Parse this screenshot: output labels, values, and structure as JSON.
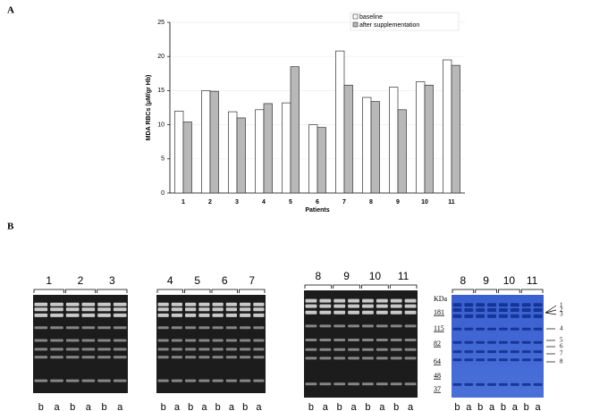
{
  "panel_a": "A",
  "panel_b": "B",
  "chart_data": {
    "type": "bar",
    "y_label": "MDA RBCs (μM/gr Hb)",
    "x_label": "Patients",
    "categories": [
      "1",
      "2",
      "3",
      "4",
      "5",
      "6",
      "7",
      "8",
      "9",
      "10",
      "11"
    ],
    "series": [
      {
        "name": "baseline",
        "color": "#ffffff",
        "values": [
          12,
          15,
          11.9,
          12.2,
          13.2,
          10,
          20.8,
          14,
          15.5,
          16.3,
          19.5
        ]
      },
      {
        "name": "after supplementation",
        "color": "#b8b8b8",
        "values": [
          10.4,
          14.9,
          11,
          13.1,
          18.5,
          9.6,
          15.8,
          13.4,
          12.2,
          15.8,
          18.7
        ]
      }
    ],
    "ylim": [
      0,
      25
    ],
    "yticks": [
      0,
      5,
      10,
      15,
      20,
      25
    ],
    "legend": "upper right"
  },
  "gels": [
    {
      "groups": [
        "1",
        "2",
        "3"
      ],
      "lanes": [
        "b",
        "a",
        "b",
        "a",
        "b",
        "a"
      ]
    },
    {
      "groups": [
        "4",
        "5",
        "6",
        "7"
      ],
      "lanes": [
        "b",
        "a",
        "b",
        "a",
        "b",
        "a",
        "b",
        "a"
      ]
    },
    {
      "groups": [
        "8",
        "9",
        "10",
        "11"
      ],
      "lanes": [
        "b",
        "a",
        "b",
        "a",
        "b",
        "a",
        "b",
        "a"
      ]
    },
    {
      "groups": [
        "8",
        "9",
        "10",
        "11"
      ],
      "lanes": [
        "b",
        "a",
        "b",
        "a",
        "b",
        "a",
        "b",
        "a"
      ],
      "kda_label": "KDa",
      "markers": [
        181,
        115,
        82,
        64,
        48,
        37
      ],
      "bands": [
        "1",
        "2",
        "3",
        "4",
        "5",
        "6",
        "7",
        "8"
      ]
    }
  ]
}
